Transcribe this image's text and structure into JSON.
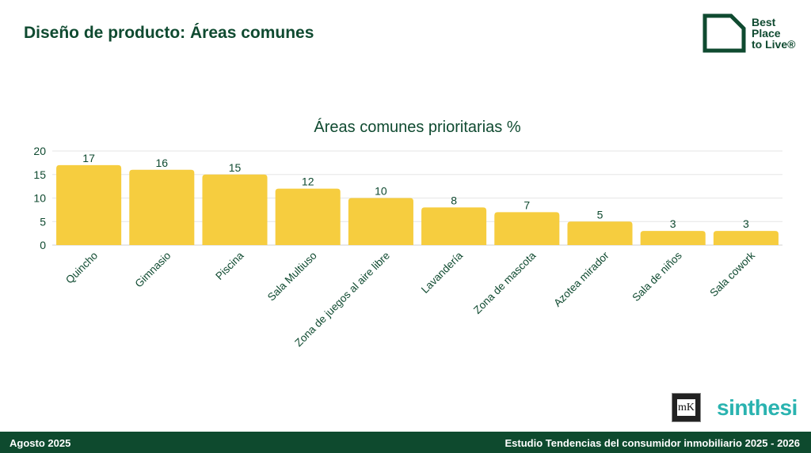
{
  "header": {
    "title": "Diseño de producto: Áreas comunes"
  },
  "brand": {
    "logo_lines": [
      "Best",
      "Place",
      "to Live®"
    ],
    "color": "#0f4a30"
  },
  "chart_data": {
    "type": "bar",
    "title": "Áreas comunes prioritarias %",
    "xlabel": "",
    "ylabel": "",
    "categories": [
      "Quincho",
      "Gimnasio",
      "Piscina",
      "Sala Multiuso",
      "Zona de juegos al aire libre",
      "Lavandería",
      "Zona de mascota",
      "Azotea mirador",
      "Sala de niños",
      "Sala cowork"
    ],
    "values": [
      17,
      16,
      15,
      12,
      10,
      8,
      7,
      5,
      3,
      3
    ],
    "ylim": [
      0,
      20
    ],
    "yticks": [
      0,
      5,
      10,
      15,
      20
    ],
    "grid": true,
    "bar_color": "#f6cd3f",
    "text_color": "#0f4a30"
  },
  "partners": {
    "mk_label": "mK",
    "synthesi_label": "sinthesi"
  },
  "footer": {
    "date": "Agosto 2025",
    "study": "Estudio Tendencias del consumidor inmobiliario 2025 - 2026"
  }
}
